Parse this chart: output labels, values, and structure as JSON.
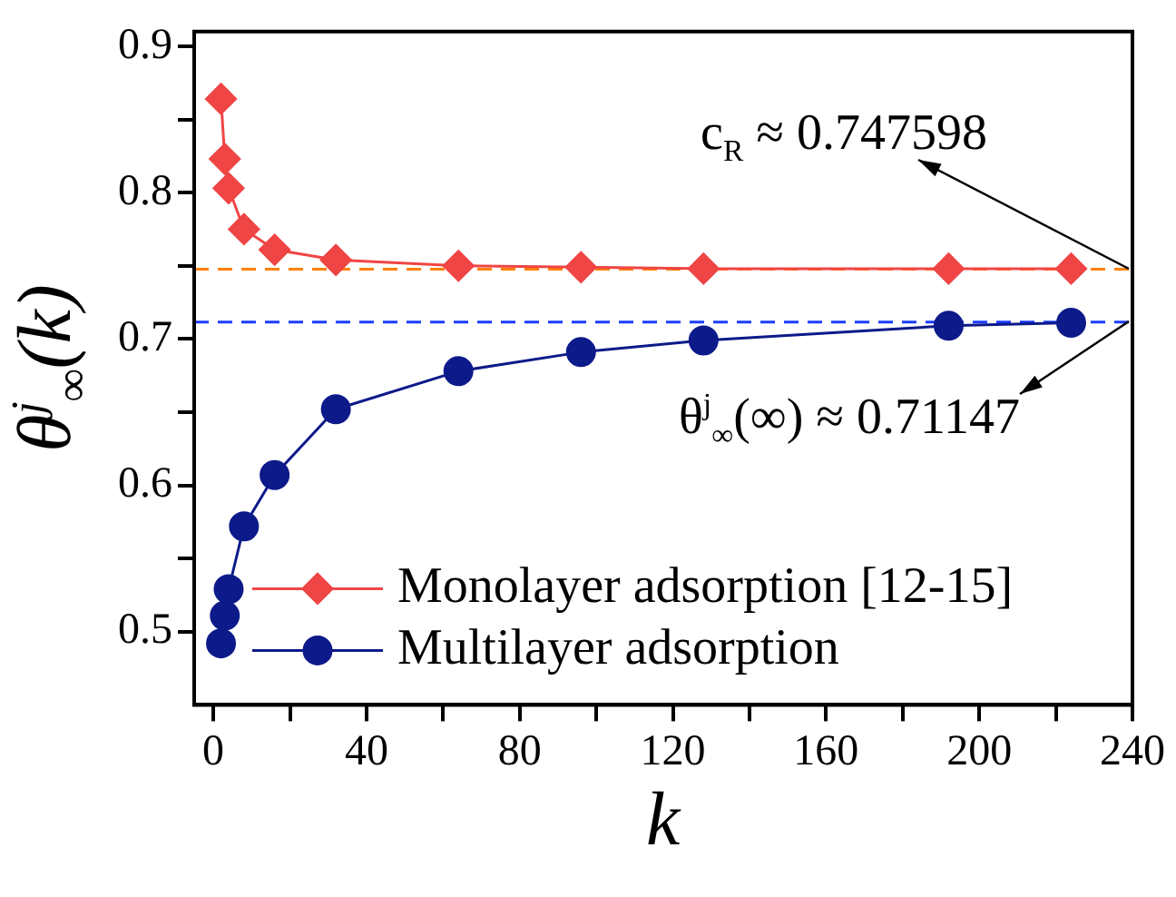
{
  "chart_data": {
    "type": "line",
    "x": [
      2,
      3,
      4,
      8,
      16,
      32,
      64,
      96,
      128,
      192,
      224
    ],
    "series": [
      {
        "name": "Monolayer adsorption [12-15]",
        "color": "#f04545",
        "marker": "diamond",
        "values": [
          0.864,
          0.823,
          0.803,
          0.775,
          0.761,
          0.754,
          0.75,
          0.749,
          0.748,
          0.748,
          0.748
        ]
      },
      {
        "name": "Multilayer adsorption",
        "color": "#0d1a8a",
        "marker": "circle",
        "values": [
          0.492,
          0.511,
          0.529,
          0.572,
          0.607,
          0.652,
          0.678,
          0.691,
          0.699,
          0.709,
          0.711
        ]
      }
    ],
    "xlabel": "k",
    "ylabel": "θ$^{j}$$_{∞}$(k)",
    "xlim": [
      -5,
      240
    ],
    "xticks": [
      0,
      {
        "value": 20,
        "label": null
      },
      40,
      {
        "value": 60,
        "label": null
      },
      80,
      {
        "value": 100,
        "label": null
      },
      120,
      {
        "value": 140,
        "label": null
      },
      160,
      {
        "value": 180,
        "label": null
      },
      200,
      {
        "value": 220,
        "label": null
      },
      240
    ],
    "ylim": [
      0.45,
      0.91
    ],
    "yticks": [
      0.5,
      {
        "value": 0.55,
        "label": null
      },
      0.6,
      {
        "value": 0.65,
        "label": null
      },
      0.7,
      {
        "value": 0.75,
        "label": null
      },
      0.8,
      {
        "value": 0.85,
        "label": null
      },
      0.9
    ],
    "ref_lines": [
      {
        "axis": "y",
        "value": 0.747598,
        "color": "#ff8000",
        "line_style": "dashed"
      },
      {
        "axis": "y",
        "value": 0.71147,
        "color": "#1a3cff",
        "line_style": "dashed"
      }
    ],
    "annotations": [
      {
        "text": "c$_{R}$ ≈ 0.747598",
        "x": 240,
        "y": 0.747598
      },
      {
        "text": "θ$^{j}$$_{∞}$(∞) ≈ 0.71147",
        "x": 240,
        "y": 0.71147
      }
    ],
    "legend": "bottom",
    "grid": false
  }
}
